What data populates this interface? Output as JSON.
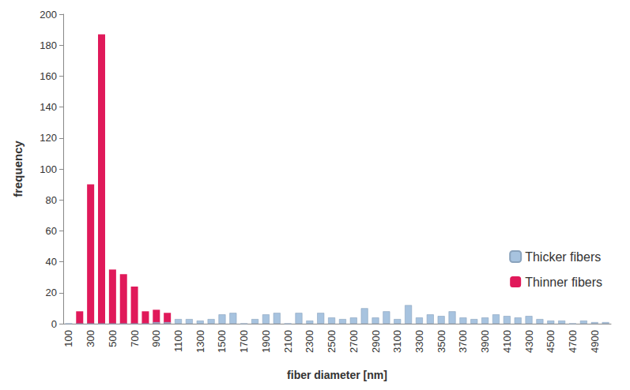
{
  "chart_data": {
    "type": "bar",
    "x_label": "fiber diameter [nm]",
    "y_label": "frequency",
    "categories": [
      "100",
      null,
      "300",
      null,
      "500",
      null,
      "700",
      null,
      "900",
      null,
      "1100",
      null,
      "1300",
      null,
      "1500",
      null,
      "1700",
      null,
      "1900",
      null,
      "2100",
      null,
      "2300",
      null,
      "2500",
      null,
      "2700",
      null,
      "2900",
      null,
      "3100",
      null,
      "3300",
      null,
      "3500",
      null,
      "3700",
      null,
      "3900",
      null,
      "4100",
      null,
      "4300",
      null,
      "4500",
      null,
      "4700",
      null,
      "4900",
      null
    ],
    "series": [
      {
        "name": "Thicker fibers",
        "color": "#a7c3df",
        "values": [
          0,
          0,
          0,
          0,
          0,
          0,
          0,
          0,
          1,
          1,
          3,
          3,
          2,
          3,
          6,
          7,
          0,
          3,
          6,
          7,
          0,
          7,
          2,
          7,
          4,
          3,
          4,
          10,
          4,
          8,
          3,
          12,
          4,
          6,
          5,
          8,
          4,
          3,
          4,
          6,
          5,
          4,
          5,
          3,
          2,
          2,
          0,
          2,
          1,
          1
        ]
      },
      {
        "name": "Thinner fibers",
        "color": "#e0195a",
        "values": [
          0,
          8,
          90,
          187,
          35,
          32,
          24,
          8,
          9,
          7,
          0,
          0,
          0,
          0,
          0,
          0,
          0,
          0,
          0,
          0,
          0,
          0,
          0,
          0,
          0,
          0,
          0,
          0,
          0,
          0,
          0,
          0,
          0,
          0,
          0,
          0,
          0,
          0,
          0,
          0,
          0,
          0,
          0,
          0,
          0,
          0,
          0,
          0,
          0,
          0
        ]
      }
    ],
    "ylim": [
      0,
      200
    ],
    "yticks": [
      0,
      20,
      40,
      60,
      80,
      100,
      120,
      140,
      160,
      180,
      200
    ],
    "grid": false,
    "legend": "lower right"
  }
}
